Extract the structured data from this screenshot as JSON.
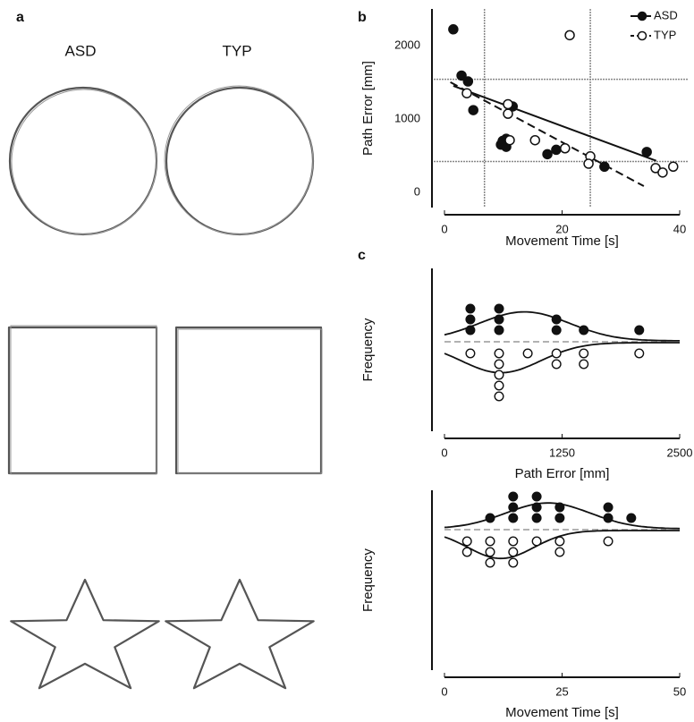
{
  "figure": {
    "panel_labels": [
      "a",
      "b",
      "c"
    ],
    "column_labels": [
      "ASD",
      "TYP"
    ]
  },
  "chart_data": [
    {
      "type": "scatter",
      "xlabel": "Movement Time [s]",
      "ylabel": "Path Error [mm]",
      "xlim": [
        0,
        40
      ],
      "ylim": [
        0,
        2400
      ],
      "xticks": [
        0,
        20,
        40
      ],
      "yticks": [
        0,
        1000,
        2000
      ],
      "series": [
        {
          "name": "ASD",
          "filled": true,
          "color": "#111111",
          "x": [
            1.5,
            2.9,
            4.0,
            4.9,
            11.6,
            9.6,
            9.9,
            10.5,
            10.5,
            17.5,
            19.0,
            27.2,
            34.4
          ],
          "values": [
            2220,
            1590,
            1510,
            1120,
            1170,
            650,
            700,
            620,
            730,
            520,
            580,
            350,
            550
          ],
          "fit": {
            "x": [
              1.5,
              36
            ],
            "values": [
              1450,
              430
            ]
          }
        },
        {
          "name": "TYP",
          "filled": false,
          "color": "#111111",
          "x": [
            21.3,
            3.8,
            10.8,
            10.8,
            11.1,
            15.4,
            20.5,
            24.8,
            24.5,
            35.9,
            37.1,
            38.9
          ],
          "values": [
            2140,
            1350,
            1200,
            1070,
            710,
            710,
            600,
            490,
            390,
            330,
            270,
            350
          ],
          "fit": {
            "x": [
              1.0,
              33.9
            ],
            "values": [
              1500,
              85
            ]
          }
        }
      ],
      "hlines": [
        1540,
        420
      ],
      "vlines": [
        6.8,
        24.8
      ],
      "ref_color": "#888888",
      "legend": "top-right"
    },
    {
      "type": "dot_histogram",
      "xlabel": "Path Error [mm]",
      "ylabel": "Frequency",
      "xlim": [
        0,
        2500
      ],
      "xticks": [
        0,
        1250,
        2500
      ],
      "series": [
        {
          "name": "ASD",
          "filled": true,
          "side": "up",
          "x": [
            275,
            580,
            1190,
            1480,
            2070
          ],
          "values": [
            3,
            3,
            2,
            1,
            1
          ],
          "curve": {
            "mean": 850,
            "sd": 480,
            "peak": 2.7
          }
        },
        {
          "name": "TYP",
          "filled": false,
          "side": "down",
          "x": [
            275,
            580,
            885,
            1190,
            1480,
            2070
          ],
          "values": [
            1,
            5,
            1,
            2,
            2,
            1
          ],
          "curve": {
            "mean": 600,
            "sd": 420,
            "peak": 2.8
          }
        }
      ]
    },
    {
      "type": "dot_histogram",
      "xlabel": "Movement Time [s]",
      "ylabel": "Frequency",
      "xlim": [
        0,
        50
      ],
      "xticks": [
        0,
        25,
        50
      ],
      "series": [
        {
          "name": "ASD",
          "filled": true,
          "side": "up",
          "x": [
            9.7,
            14.6,
            19.6,
            24.5,
            34.8,
            39.7
          ],
          "values": [
            1,
            3,
            3,
            2,
            2,
            1
          ],
          "curve": {
            "mean": 22,
            "sd": 9,
            "peak": 2.4
          }
        },
        {
          "name": "TYP",
          "filled": false,
          "side": "down",
          "x": [
            4.8,
            9.7,
            14.6,
            19.6,
            24.5,
            34.8
          ],
          "values": [
            2,
            3,
            3,
            1,
            2,
            1
          ],
          "curve": {
            "mean": 12,
            "sd": 7,
            "peak": 2.6
          }
        }
      ]
    }
  ]
}
